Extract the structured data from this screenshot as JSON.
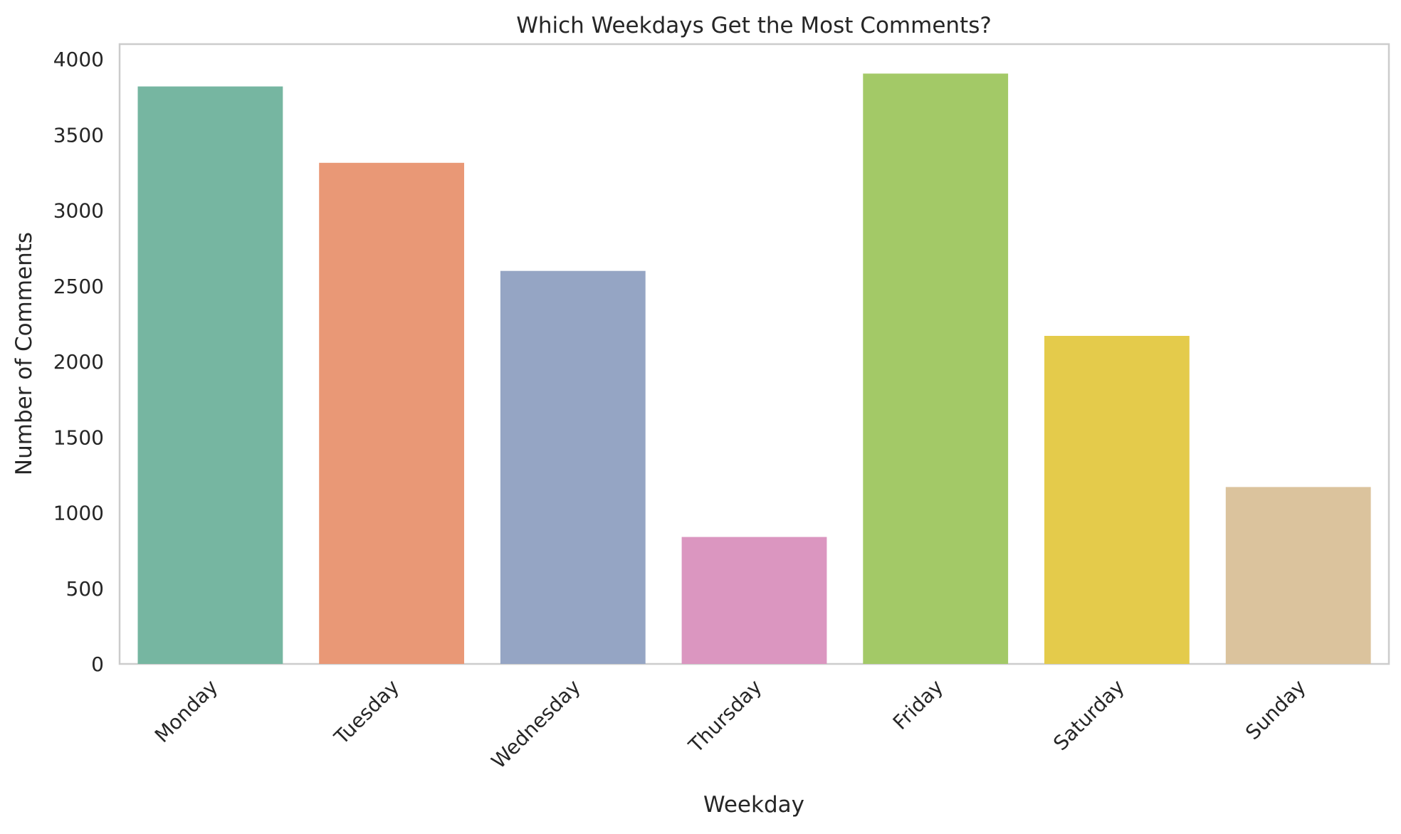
{
  "chart_data": {
    "type": "bar",
    "title": "Which Weekdays Get the Most Comments?",
    "xlabel": "Weekday",
    "ylabel": "Number of Comments",
    "categories": [
      "Monday",
      "Tuesday",
      "Wednesday",
      "Thursday",
      "Friday",
      "Saturday",
      "Sunday"
    ],
    "values": [
      3820,
      3315,
      2600,
      840,
      3905,
      2170,
      1170
    ],
    "colors": [
      "#76b6a1",
      "#e99876",
      "#95a5c4",
      "#db96c0",
      "#a3c967",
      "#e4cb4b",
      "#dbc39d"
    ],
    "ylim": [
      0,
      4100
    ],
    "yticks": [
      0,
      500,
      1000,
      1500,
      2000,
      2500,
      3000,
      3500,
      4000
    ],
    "ytick_labels": [
      "0",
      "500",
      "1000",
      "1500",
      "2000",
      "2500",
      "3000",
      "3500",
      "4000"
    ],
    "xtick_rotation": 45,
    "grid": false,
    "legend": "none"
  }
}
